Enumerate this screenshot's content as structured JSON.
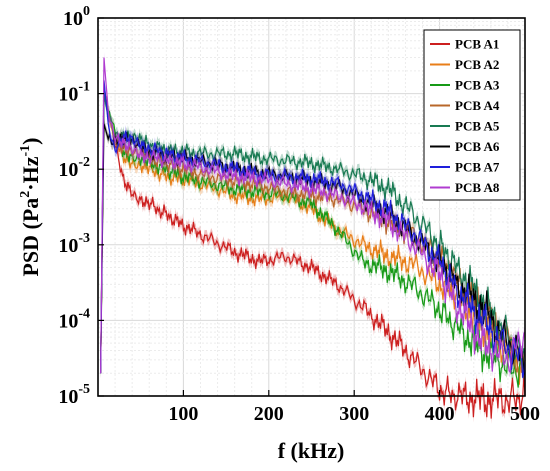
{
  "chart_data": {
    "type": "line",
    "xlabel": "f (kHz)",
    "ylabel_main": "PSD (Pa",
    "ylabel_sup1": "2",
    "ylabel_mid": "·Hz",
    "ylabel_sup2": "-1",
    "ylabel_close": ")",
    "xlim": [
      0,
      500
    ],
    "ylim": [
      1e-05,
      1
    ],
    "yscale": "log",
    "x_ticks": [
      100,
      200,
      300,
      400,
      500
    ],
    "x_tick_labels": [
      "100",
      "200",
      "300",
      "400",
      "500"
    ],
    "y_ticks": [
      1e-05,
      0.0001,
      0.001,
      0.01,
      0.1,
      1
    ],
    "y_tick_labels": [
      {
        "base": "10",
        "exp": "-5"
      },
      {
        "base": "10",
        "exp": "-4"
      },
      {
        "base": "10",
        "exp": "-3"
      },
      {
        "base": "10",
        "exp": "-2"
      },
      {
        "base": "10",
        "exp": "-1"
      },
      {
        "base": "10",
        "exp": "0"
      }
    ],
    "grid": true,
    "legend_position": "top-right",
    "series": [
      {
        "name": "PCB A1",
        "color": "#cc1f1f",
        "x": [
          3,
          7,
          12,
          20,
          30,
          45,
          60,
          80,
          100,
          130,
          160,
          190,
          220,
          250,
          280,
          310,
          340,
          370,
          400,
          420,
          450,
          480,
          500
        ],
        "y": [
          2e-05,
          0.12,
          0.06,
          0.02,
          0.007,
          0.0045,
          0.0035,
          0.0025,
          0.0018,
          0.0012,
          0.0008,
          0.0006,
          0.0007,
          0.0005,
          0.0003,
          0.00015,
          7e-05,
          3e-05,
          1.2e-05,
          1e-05,
          9e-06,
          9e-06,
          1e-05
        ]
      },
      {
        "name": "PCB A2",
        "color": "#e87e18",
        "x": [
          3,
          7,
          12,
          20,
          30,
          45,
          60,
          80,
          100,
          130,
          160,
          190,
          220,
          250,
          280,
          310,
          340,
          370,
          400,
          420,
          450,
          480,
          500
        ],
        "y": [
          2e-05,
          0.12,
          0.05,
          0.025,
          0.015,
          0.012,
          0.01,
          0.008,
          0.0075,
          0.006,
          0.0045,
          0.004,
          0.0045,
          0.003,
          0.0016,
          0.001,
          0.0007,
          0.00055,
          0.0003,
          0.00022,
          8e-05,
          4e-05,
          2e-05
        ]
      },
      {
        "name": "PCB A3",
        "color": "#179a17",
        "x": [
          3,
          7,
          12,
          20,
          30,
          45,
          60,
          80,
          100,
          130,
          160,
          190,
          220,
          250,
          280,
          310,
          340,
          370,
          400,
          420,
          450,
          480,
          500
        ],
        "y": [
          2e-05,
          0.09,
          0.06,
          0.03,
          0.018,
          0.014,
          0.012,
          0.01,
          0.008,
          0.0065,
          0.0055,
          0.005,
          0.0045,
          0.0035,
          0.0016,
          0.0006,
          0.00045,
          0.00028,
          0.00014,
          8e-05,
          4e-05,
          2.5e-05,
          2e-05
        ]
      },
      {
        "name": "PCB A4",
        "color": "#b8672a",
        "x": [
          3,
          7,
          12,
          20,
          30,
          45,
          60,
          80,
          100,
          130,
          160,
          190,
          220,
          250,
          280,
          310,
          340,
          370,
          400,
          420,
          450,
          480,
          500
        ],
        "y": [
          2e-05,
          0.1,
          0.05,
          0.025,
          0.02,
          0.016,
          0.014,
          0.012,
          0.01,
          0.008,
          0.007,
          0.006,
          0.005,
          0.0045,
          0.004,
          0.003,
          0.002,
          0.0013,
          0.0007,
          0.00035,
          0.00014,
          5e-05,
          2e-05
        ]
      },
      {
        "name": "PCB A5",
        "color": "#187a52",
        "x": [
          3,
          7,
          12,
          20,
          30,
          45,
          60,
          80,
          100,
          130,
          160,
          190,
          220,
          250,
          280,
          310,
          340,
          370,
          400,
          420,
          450,
          480,
          500
        ],
        "y": [
          2e-05,
          0.1,
          0.05,
          0.03,
          0.028,
          0.024,
          0.021,
          0.018,
          0.017,
          0.016,
          0.016,
          0.014,
          0.013,
          0.012,
          0.01,
          0.008,
          0.0055,
          0.0025,
          0.001,
          0.0005,
          0.00018,
          6e-05,
          3e-05
        ]
      },
      {
        "name": "PCB A6",
        "color": "#000000",
        "x": [
          3,
          7,
          12,
          20,
          30,
          45,
          60,
          80,
          100,
          130,
          160,
          190,
          220,
          250,
          280,
          310,
          340,
          370,
          400,
          420,
          450,
          480,
          500
        ],
        "y": [
          2e-05,
          0.04,
          0.025,
          0.025,
          0.025,
          0.02,
          0.017,
          0.015,
          0.014,
          0.012,
          0.01,
          0.009,
          0.008,
          0.007,
          0.006,
          0.004,
          0.0025,
          0.0013,
          0.0006,
          0.0003,
          0.00015,
          5e-05,
          3e-05
        ]
      },
      {
        "name": "PCB A7",
        "color": "#1e1edb",
        "x": [
          3,
          7,
          12,
          20,
          30,
          45,
          60,
          80,
          100,
          130,
          160,
          190,
          220,
          250,
          280,
          310,
          340,
          370,
          400,
          420,
          450,
          480,
          500
        ],
        "y": [
          2e-05,
          0.15,
          0.04,
          0.018,
          0.025,
          0.022,
          0.019,
          0.016,
          0.014,
          0.012,
          0.01,
          0.0085,
          0.008,
          0.0075,
          0.0065,
          0.0045,
          0.0028,
          0.0014,
          0.0006,
          0.00025,
          0.0001,
          4e-05,
          3e-05
        ]
      },
      {
        "name": "PCB A8",
        "color": "#b03cd0",
        "x": [
          3,
          7,
          12,
          20,
          30,
          45,
          60,
          80,
          100,
          130,
          160,
          190,
          220,
          250,
          280,
          310,
          340,
          370,
          400,
          420,
          450,
          480,
          500
        ],
        "y": [
          2e-05,
          0.3,
          0.06,
          0.025,
          0.02,
          0.017,
          0.015,
          0.013,
          0.012,
          0.01,
          0.008,
          0.0075,
          0.0065,
          0.0055,
          0.0045,
          0.0032,
          0.002,
          0.001,
          0.0004,
          0.00016,
          5e-05,
          3e-05,
          7e-05
        ]
      }
    ]
  }
}
